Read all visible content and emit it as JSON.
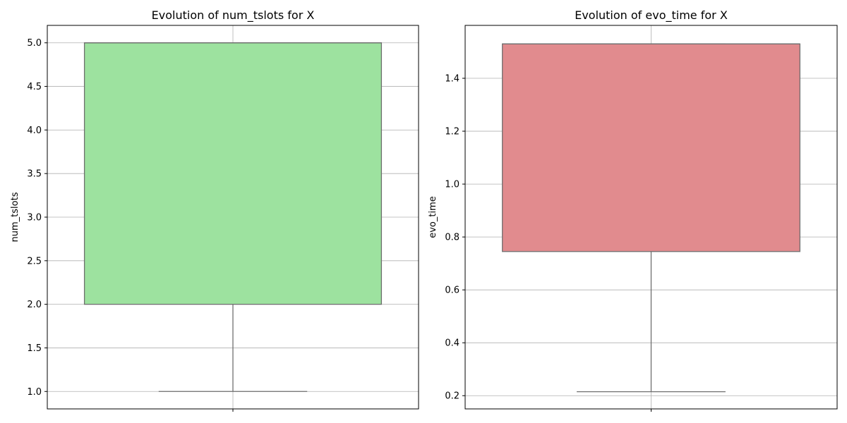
{
  "chart_data": [
    {
      "type": "box",
      "title": "Evolution of num_tslots for X",
      "xlabel": "",
      "ylabel": "num_tslots",
      "ylim": [
        0.8,
        5.2
      ],
      "yticks": [
        1.0,
        1.5,
        2.0,
        2.5,
        3.0,
        3.5,
        4.0,
        4.5,
        5.0
      ],
      "ytick_labels": [
        "1.0",
        "1.5",
        "2.0",
        "2.5",
        "3.0",
        "3.5",
        "4.0",
        "4.5",
        "5.0"
      ],
      "grid": true,
      "color": "#9de29f",
      "box": {
        "whisker_low": 1.0,
        "q1": 2.0,
        "median": 5.0,
        "q3": 5.0,
        "whisker_high": 5.0
      }
    },
    {
      "type": "box",
      "title": "Evolution of evo_time for X",
      "xlabel": "",
      "ylabel": "evo_time",
      "ylim": [
        0.15,
        1.6
      ],
      "yticks": [
        0.2,
        0.4,
        0.6,
        0.8,
        1.0,
        1.2,
        1.4
      ],
      "ytick_labels": [
        "0.2",
        "0.4",
        "0.6",
        "0.8",
        "1.0",
        "1.2",
        "1.4"
      ],
      "grid": true,
      "color": "#e18b8e",
      "box": {
        "whisker_low": 0.215,
        "q1": 0.745,
        "median": 1.53,
        "q3": 1.53,
        "whisker_high": 1.53
      }
    }
  ]
}
